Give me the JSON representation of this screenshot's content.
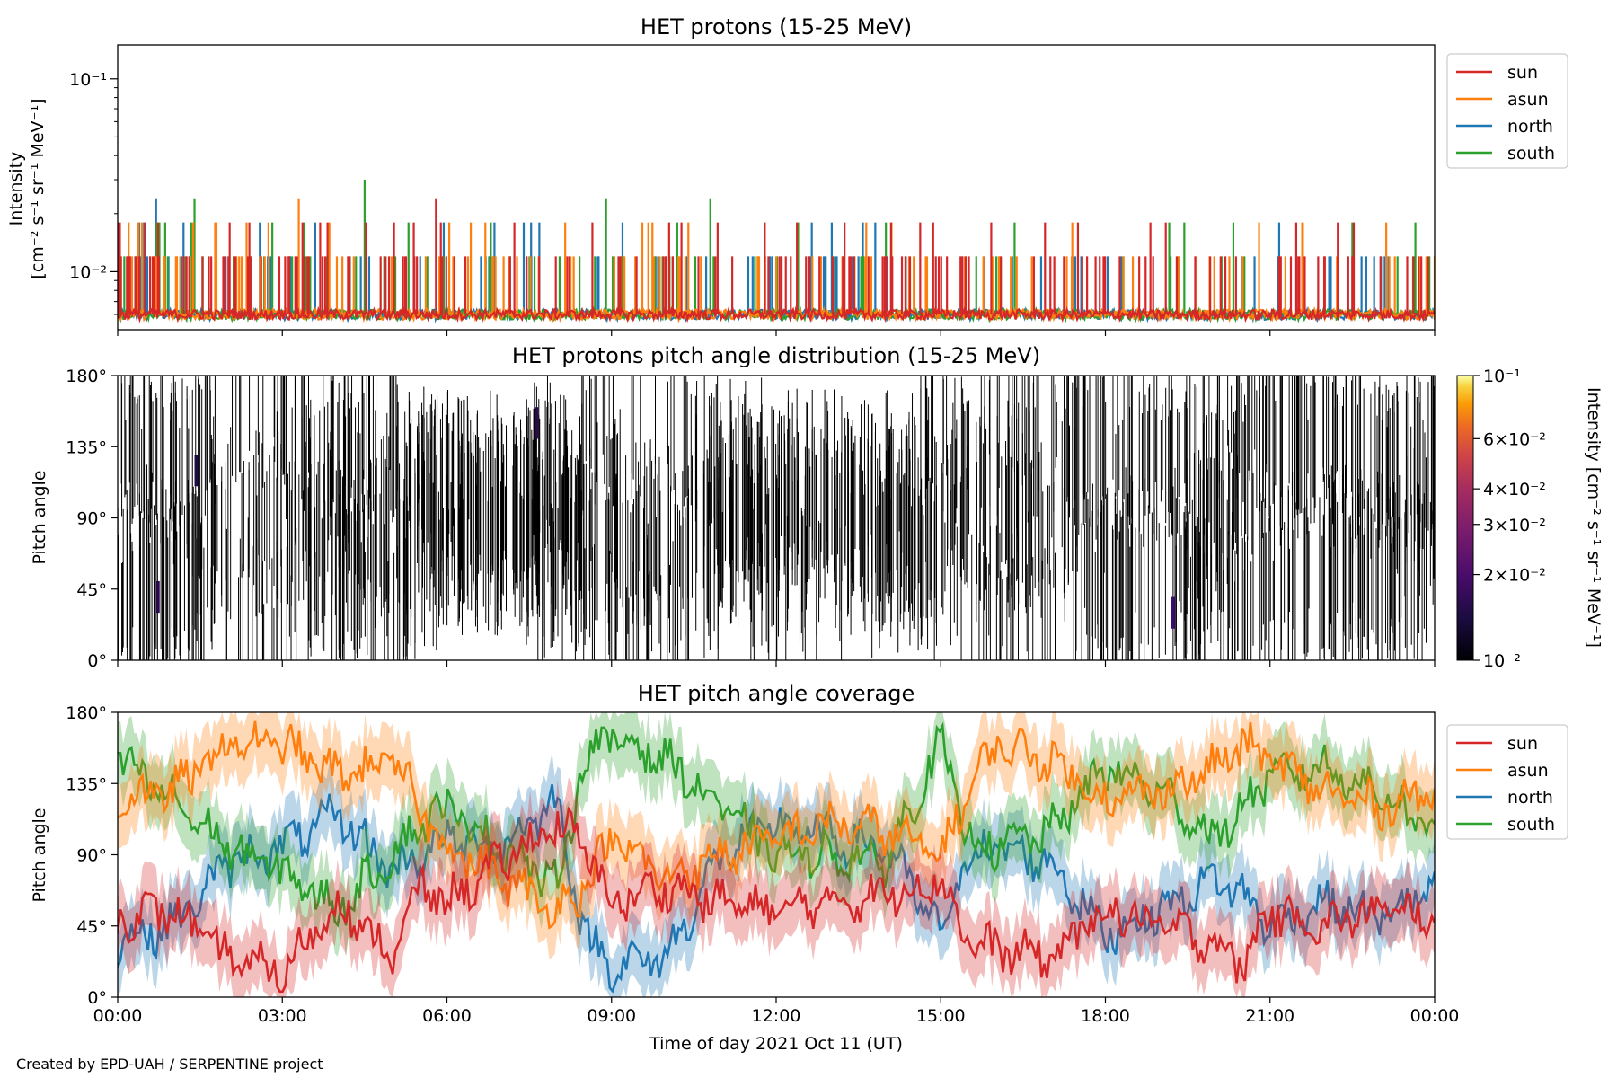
{
  "colors": {
    "sun": "#d62728",
    "asun": "#ff7f0e",
    "north": "#1f77b4",
    "south": "#2ca02c"
  },
  "footer": "Created by EPD-UAH / SERPENTINE project",
  "x_axis": {
    "label": "Time of day 2021 Oct 11 (UT)",
    "ticks": [
      "00:00",
      "03:00",
      "06:00",
      "09:00",
      "12:00",
      "15:00",
      "18:00",
      "21:00",
      "00:00"
    ],
    "range_hours": [
      0,
      24
    ]
  },
  "chart_data": [
    {
      "type": "line",
      "title": "HET protons (15-25 MeV)",
      "ylabel_line1": "Intensity",
      "ylabel_line2": "[cm⁻² s⁻¹ sr⁻¹ MeV⁻¹]",
      "yscale": "log",
      "ylim": [
        0.005,
        0.15
      ],
      "yticks": [
        "10⁻¹",
        "10⁻²"
      ],
      "legend": [
        "sun",
        "asun",
        "north",
        "south"
      ],
      "legend_position": "upper-right-outside",
      "baseline": 0.006,
      "levels": [
        0.006,
        0.012,
        0.018,
        0.024,
        0.03
      ],
      "spikes": {
        "south": [
          [
            1.4,
            0.024
          ],
          [
            4.5,
            0.03
          ],
          [
            8.9,
            0.024
          ],
          [
            10.8,
            0.024
          ],
          [
            14.0,
            0.018
          ],
          [
            12.4,
            0.018
          ],
          [
            22.5,
            0.018
          ],
          [
            6.8,
            0.018
          ],
          [
            3.4,
            0.018
          ]
        ],
        "north": [
          [
            0.7,
            0.024
          ],
          [
            1.2,
            0.018
          ],
          [
            3.6,
            0.018
          ],
          [
            7.4,
            0.018
          ],
          [
            9.2,
            0.018
          ],
          [
            13.5,
            0.012
          ],
          [
            17.4,
            0.012
          ],
          [
            20.5,
            0.012
          ]
        ],
        "asun": [
          [
            0.2,
            0.018
          ],
          [
            3.3,
            0.024
          ],
          [
            1.8,
            0.018
          ],
          [
            6.7,
            0.018
          ],
          [
            10.4,
            0.018
          ],
          [
            20.8,
            0.018
          ],
          [
            21.6,
            0.018
          ],
          [
            24.0,
            0.012
          ]
        ],
        "sun": [
          [
            0.5,
            0.018
          ],
          [
            2.4,
            0.018
          ],
          [
            5.8,
            0.024
          ],
          [
            11.2,
            0.012
          ],
          [
            16.9,
            0.018
          ],
          [
            19.1,
            0.018
          ],
          [
            20.1,
            0.012
          ],
          [
            22.0,
            0.012
          ]
        ]
      }
    },
    {
      "type": "heatmap",
      "title": "HET protons pitch angle distribution (15-25 MeV)",
      "ylabel": "Pitch angle",
      "ylim": [
        0,
        180
      ],
      "yticks": [
        "0°",
        "45°",
        "90°",
        "135°",
        "180°"
      ],
      "colorbar": {
        "label": "Intensity [cm⁻² s⁻¹ sr⁻¹ MeV⁻¹]",
        "scale": "log",
        "range": [
          0.01,
          0.1
        ],
        "ticks": [
          {
            "v": 0.1,
            "t": "10⁻¹"
          },
          {
            "v": 0.06,
            "t": "6×10⁻²"
          },
          {
            "v": 0.04,
            "t": "4×10⁻²"
          },
          {
            "v": 0.03,
            "t": "3×10⁻²"
          },
          {
            "v": 0.02,
            "t": "2×10⁻²"
          },
          {
            "v": 0.01,
            "t": "10⁻²"
          }
        ]
      }
    },
    {
      "type": "line",
      "title": "HET pitch angle coverage",
      "ylabel": "Pitch angle",
      "ylim": [
        0,
        180
      ],
      "yticks": [
        "0°",
        "45°",
        "90°",
        "135°",
        "180°"
      ],
      "legend": [
        "sun",
        "asun",
        "north",
        "south"
      ],
      "legend_position": "upper-right-outside",
      "band_half_width_deg": 20,
      "series": [
        {
          "name": "sun",
          "x": [
            0,
            1,
            2,
            3,
            4,
            5,
            5.5,
            6,
            7,
            8,
            8.5,
            9,
            10,
            11,
            12,
            13,
            14,
            15,
            15.5,
            16,
            17,
            18,
            19,
            20,
            20.5,
            21,
            22,
            23,
            24
          ],
          "values": [
            50,
            55,
            25,
            15,
            60,
            25,
            70,
            60,
            85,
            110,
            95,
            60,
            70,
            60,
            55,
            60,
            65,
            75,
            35,
            30,
            25,
            55,
            45,
            35,
            20,
            55,
            45,
            55,
            50
          ]
        },
        {
          "name": "asun",
          "x": [
            0,
            1,
            2,
            3,
            4,
            5,
            5.5,
            6,
            7,
            8,
            8.5,
            9,
            10,
            11,
            12,
            13,
            14,
            15,
            15.5,
            16,
            17,
            18,
            19,
            20,
            20.5,
            21,
            22,
            23,
            24
          ],
          "values": [
            125,
            130,
            160,
            160,
            140,
            150,
            120,
            95,
            75,
            55,
            70,
            100,
            75,
            90,
            100,
            110,
            105,
            90,
            130,
            160,
            150,
            125,
            130,
            145,
            160,
            150,
            130,
            120,
            130
          ]
        },
        {
          "name": "north",
          "x": [
            0,
            1,
            2,
            3,
            4,
            5,
            5.5,
            6,
            7,
            8,
            8.5,
            9,
            10,
            11,
            12,
            13,
            14,
            15,
            15.5,
            16,
            17,
            18,
            19,
            20,
            20.5,
            21,
            22,
            23,
            24
          ],
          "values": [
            35,
            45,
            85,
            95,
            115,
            80,
            90,
            100,
            95,
            125,
            40,
            20,
            25,
            90,
            110,
            100,
            95,
            40,
            90,
            95,
            85,
            40,
            55,
            75,
            65,
            45,
            60,
            50,
            70
          ]
        },
        {
          "name": "south",
          "x": [
            0,
            1,
            2,
            3,
            4,
            5,
            5.5,
            6,
            7,
            8,
            8.5,
            9,
            10,
            11,
            12,
            13,
            14,
            15,
            15.5,
            16,
            17,
            18,
            19,
            20,
            20.5,
            21,
            22,
            23,
            24
          ],
          "values": [
            150,
            125,
            95,
            80,
            55,
            90,
            110,
            120,
            95,
            70,
            150,
            165,
            150,
            120,
            90,
            90,
            85,
            160,
            100,
            95,
            105,
            145,
            130,
            100,
            120,
            140,
            145,
            130,
            105
          ]
        }
      ]
    }
  ]
}
